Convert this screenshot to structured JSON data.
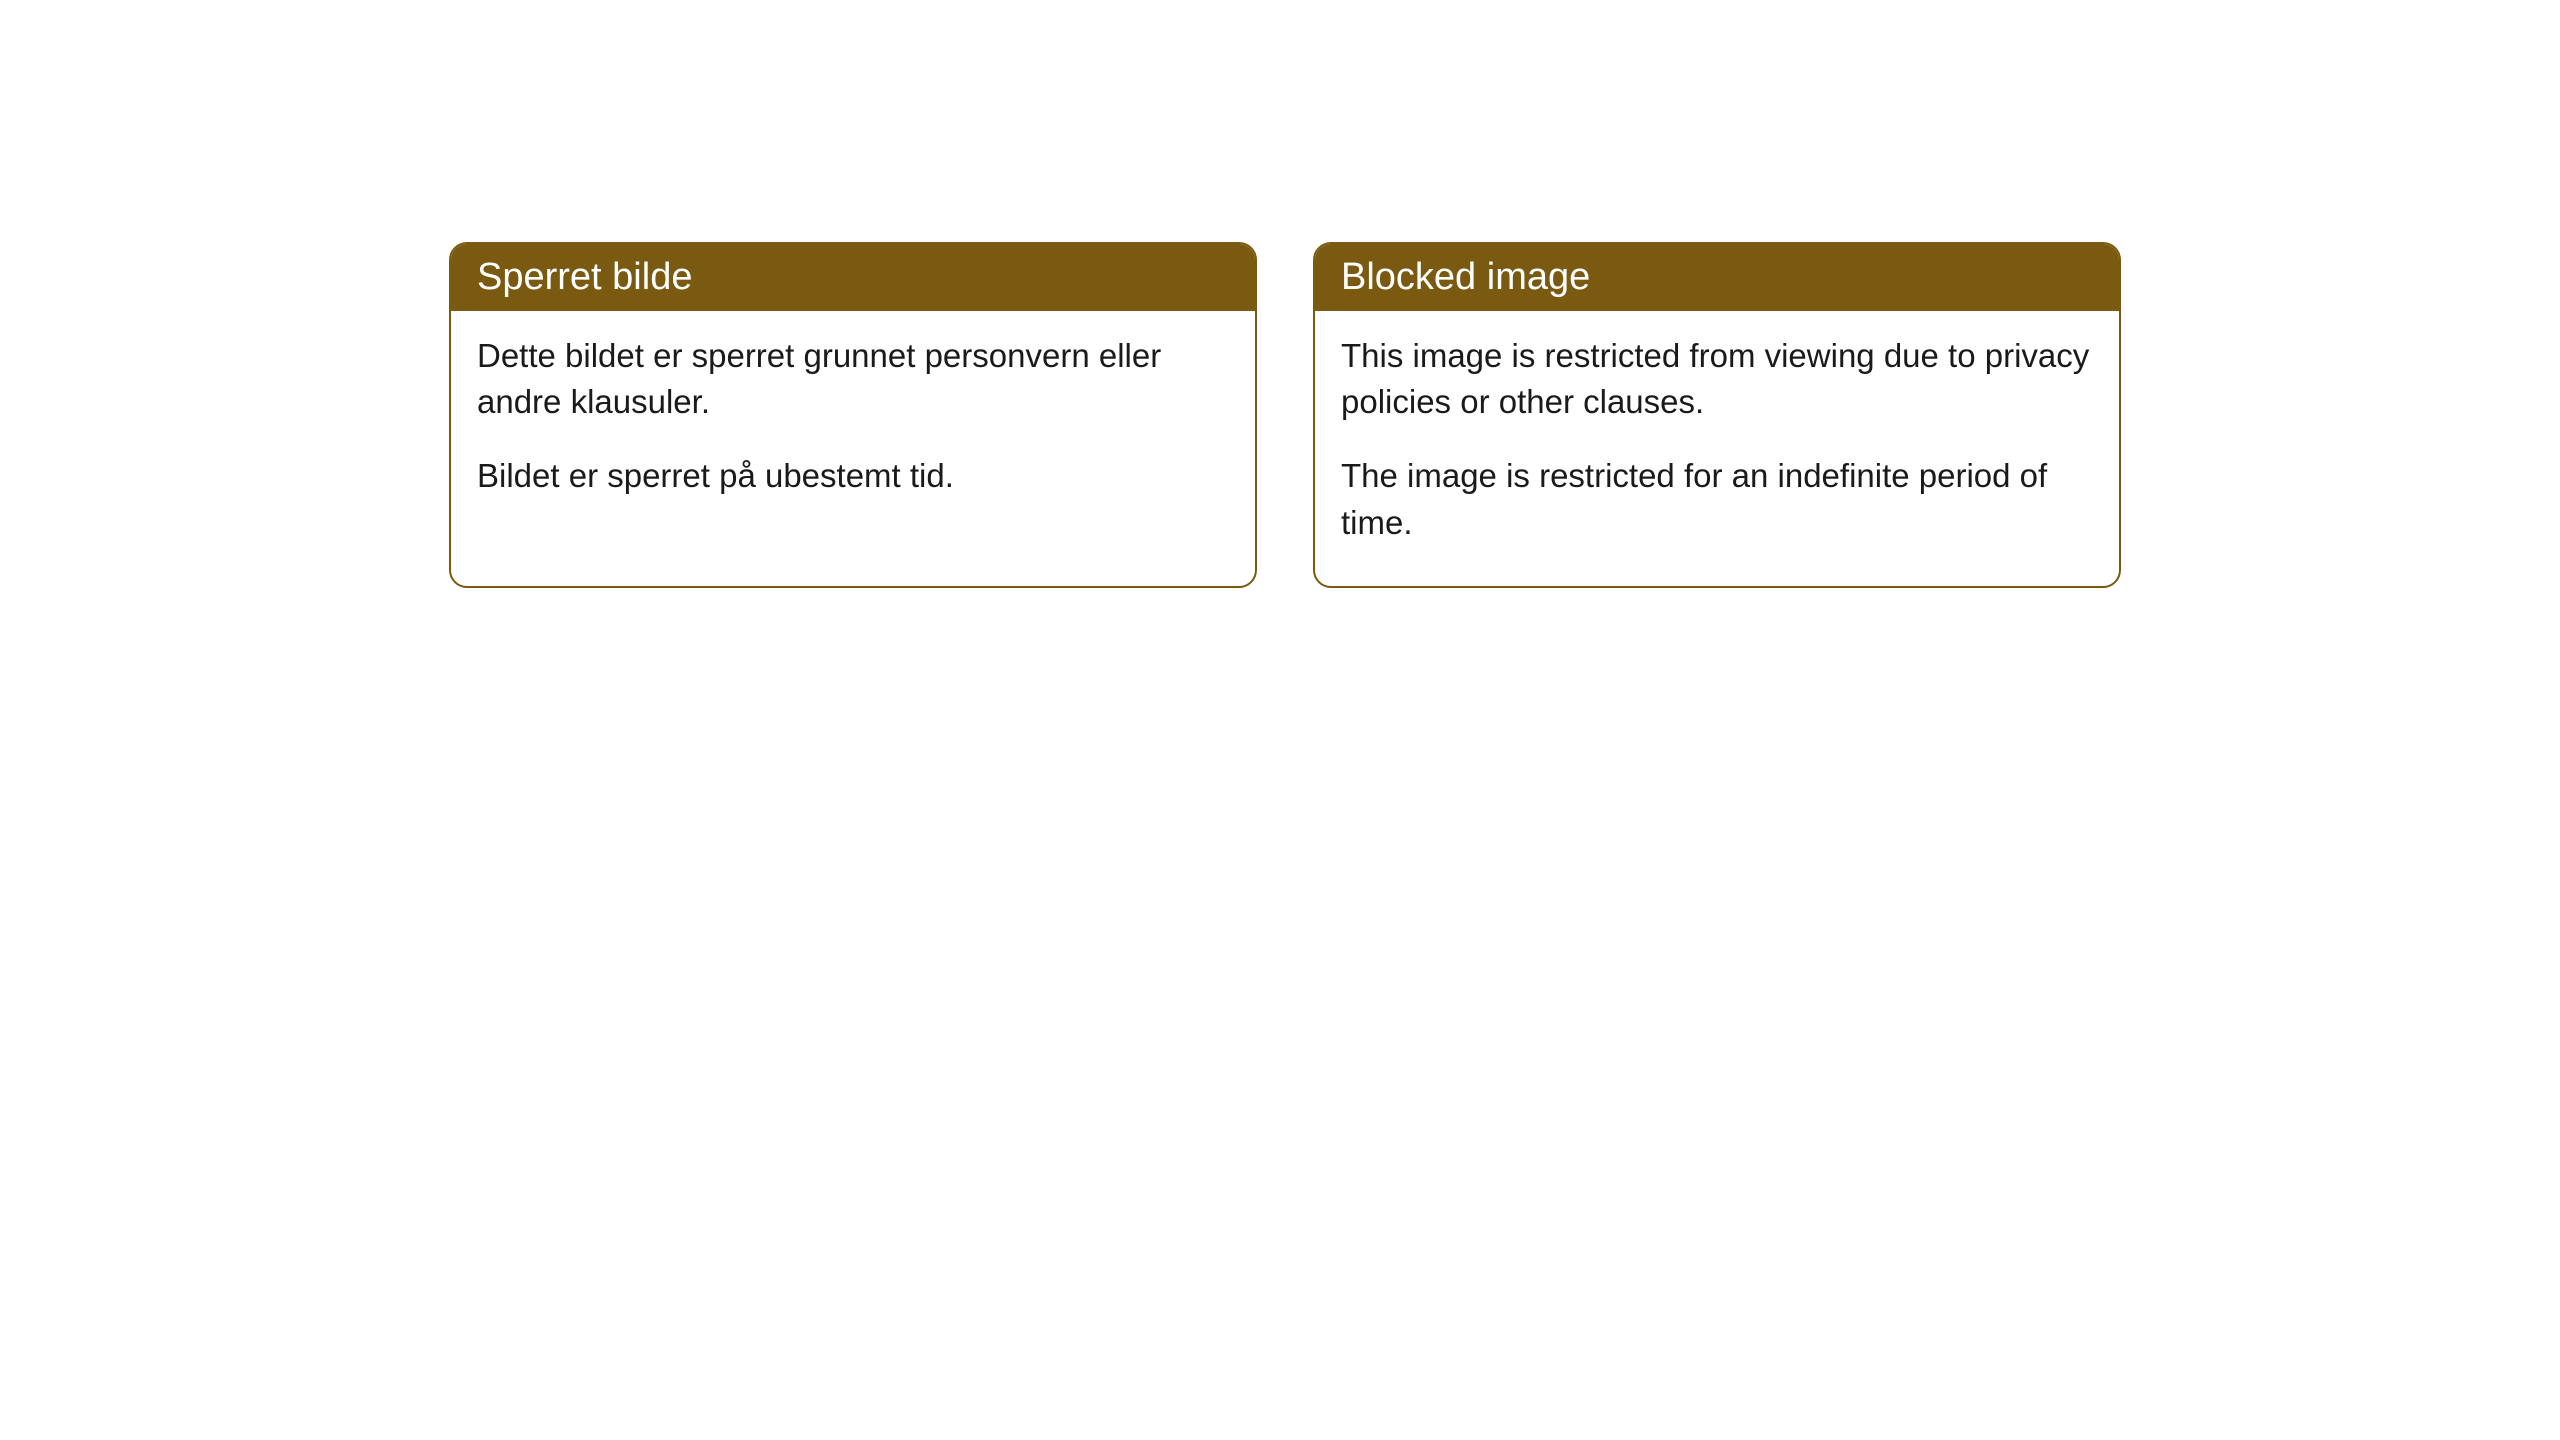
{
  "cards": [
    {
      "title": "Sperret bilde",
      "paragraph1": "Dette bildet er sperret grunnet personvern eller andre klausuler.",
      "paragraph2": "Bildet er sperret på ubestemt tid."
    },
    {
      "title": "Blocked image",
      "paragraph1": "This image is restricted from viewing due to privacy policies or other clauses.",
      "paragraph2": "The image is restricted for an indefinite period of time."
    }
  ],
  "style": {
    "header_bg": "#7a5a10",
    "header_text_color": "#ffffff",
    "border_color": "#7a5a10",
    "body_bg": "#ffffff",
    "body_text_color": "#1a1a1a",
    "border_radius": 18,
    "header_fontsize": 38,
    "body_fontsize": 33
  }
}
